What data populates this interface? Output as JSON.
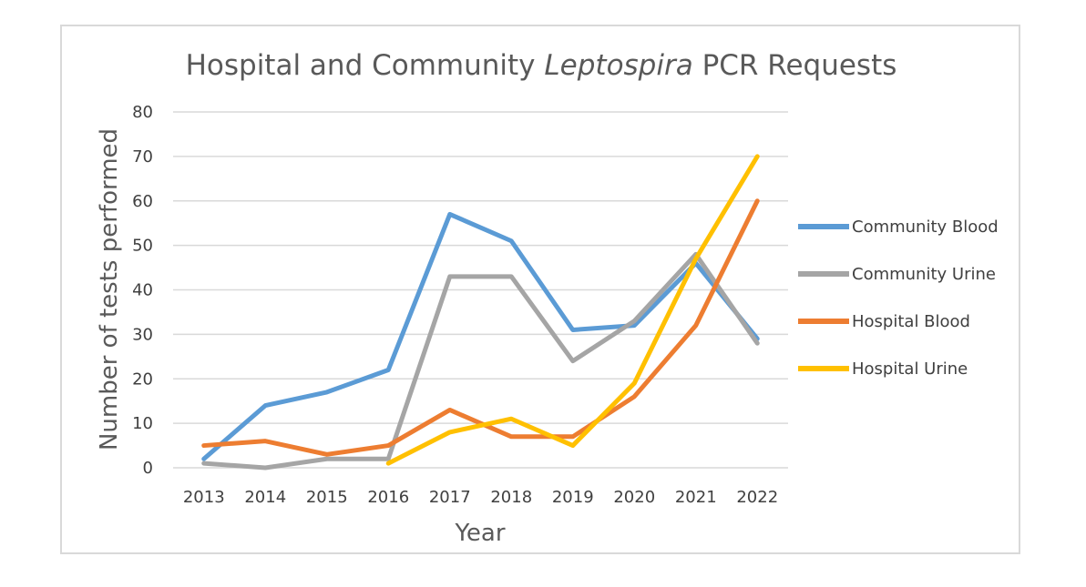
{
  "chart_data": {
    "type": "line",
    "title": {
      "prefix": "Hospital and Community ",
      "italic": "Leptospira",
      "suffix": " PCR Requests"
    },
    "xlabel": "Year",
    "ylabel": "Number of tests performed",
    "ylim": [
      0,
      80
    ],
    "yticks": [
      0,
      10,
      20,
      30,
      40,
      50,
      60,
      70,
      80
    ],
    "categories": [
      "2013",
      "2014",
      "2015",
      "2016",
      "2017",
      "2018",
      "2019",
      "2020",
      "2021",
      "2022"
    ],
    "grid": true,
    "legend_position": "right",
    "series": [
      {
        "name": "Community Blood",
        "color": "#5b9bd5",
        "values": [
          2,
          14,
          17,
          22,
          57,
          51,
          31,
          32,
          46,
          29
        ]
      },
      {
        "name": "Community Urine",
        "color": "#a5a5a5",
        "values": [
          1,
          0,
          2,
          2,
          43,
          43,
          24,
          33,
          48,
          28
        ]
      },
      {
        "name": "Hospital Blood",
        "color": "#ed7d31",
        "values": [
          5,
          6,
          3,
          5,
          13,
          7,
          7,
          16,
          32,
          60
        ]
      },
      {
        "name": "Hospital Urine",
        "color": "#ffc000",
        "values": [
          null,
          null,
          null,
          1,
          8,
          11,
          5,
          19,
          47,
          70
        ]
      }
    ]
  }
}
